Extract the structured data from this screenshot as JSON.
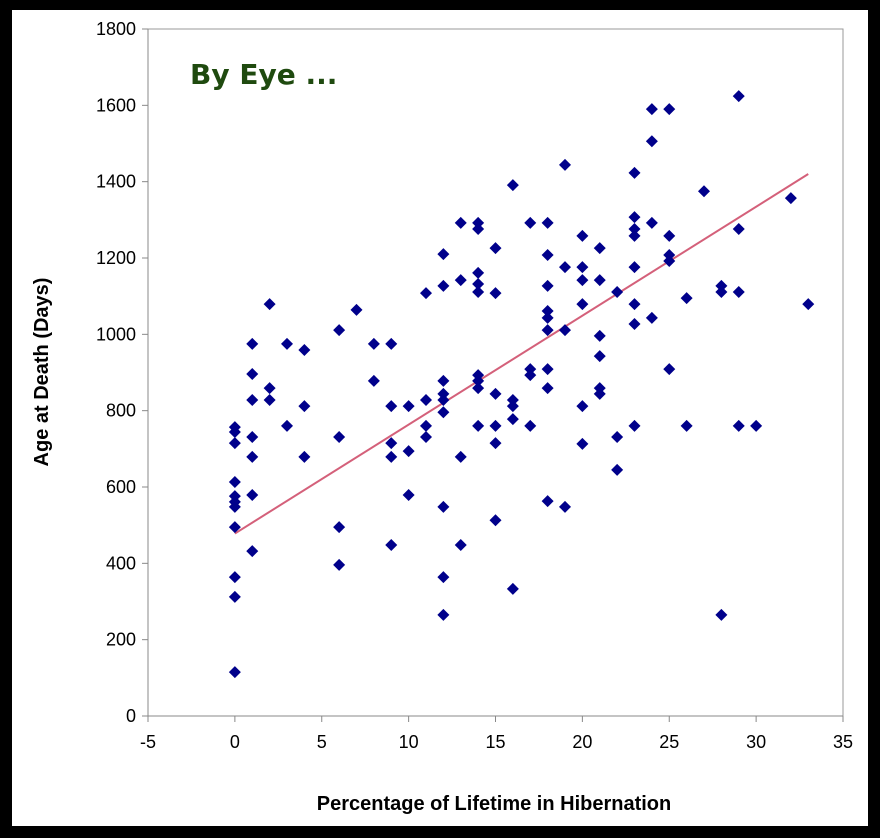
{
  "chart_data": {
    "type": "scatter",
    "annotation": "By Eye ...",
    "x_label": "Percentage of Lifetime in Hibernation",
    "y_label": "Age at Death (Days)",
    "x": [
      0,
      0,
      0,
      0,
      0,
      0,
      0,
      0,
      0,
      0,
      0,
      1,
      1,
      1,
      1,
      1,
      1,
      1,
      2,
      2,
      2,
      3,
      3,
      4,
      4,
      4,
      6,
      6,
      6,
      6,
      7,
      8,
      8,
      9,
      9,
      9,
      9,
      9,
      10,
      10,
      10,
      11,
      11,
      11,
      11,
      12,
      12,
      12,
      12,
      12,
      12,
      12,
      12,
      12,
      13,
      13,
      13,
      13,
      14,
      14,
      14,
      14,
      14,
      14,
      14,
      14,
      14,
      15,
      15,
      15,
      15,
      15,
      15,
      16,
      16,
      16,
      16,
      16,
      17,
      17,
      17,
      17,
      18,
      18,
      18,
      18,
      18,
      18,
      18,
      18,
      18,
      19,
      19,
      19,
      19,
      20,
      20,
      20,
      20,
      20,
      20,
      21,
      21,
      21,
      21,
      21,
      21,
      22,
      22,
      22,
      23,
      23,
      23,
      23,
      23,
      23,
      23,
      23,
      24,
      24,
      24,
      24,
      25,
      25,
      25,
      25,
      25,
      26,
      26,
      27,
      28,
      28,
      28,
      29,
      29,
      29,
      29,
      30,
      32,
      33
    ],
    "values": [
      757,
      744,
      715,
      613,
      576,
      561,
      548,
      495,
      364,
      312,
      115,
      975,
      896,
      828,
      731,
      679,
      579,
      432,
      1079,
      859,
      828,
      975,
      760,
      959,
      812,
      679,
      1011,
      731,
      495,
      396,
      1064,
      975,
      878,
      975,
      812,
      715,
      679,
      448,
      812,
      694,
      579,
      1108,
      828,
      760,
      731,
      1210,
      1127,
      878,
      844,
      828,
      796,
      548,
      364,
      265,
      1292,
      1142,
      679,
      448,
      1292,
      1276,
      1161,
      1132,
      1111,
      893,
      878,
      859,
      760,
      1226,
      1108,
      844,
      760,
      715,
      513,
      1391,
      828,
      812,
      778,
      333,
      1292,
      909,
      893,
      760,
      1292,
      1208,
      1127,
      1061,
      1043,
      1011,
      909,
      859,
      563,
      1444,
      1176,
      1011,
      548,
      1258,
      1176,
      1142,
      1079,
      812,
      713,
      1226,
      1142,
      996,
      943,
      859,
      844,
      1111,
      731,
      645,
      1423,
      1307,
      1276,
      1258,
      1176,
      1079,
      1027,
      760,
      1590,
      1506,
      1292,
      1043,
      1590,
      1258,
      1208,
      1192,
      909,
      1095,
      760,
      1375,
      1127,
      1111,
      265,
      1624,
      1276,
      1111,
      760,
      760,
      1357,
      1079
    ],
    "color": "#00008b",
    "trend_line": {
      "x": [
        0,
        33
      ],
      "values": [
        478,
        1420
      ],
      "color": "#d4607a"
    },
    "xlim": [
      -5,
      35
    ],
    "xticks": [
      -5,
      0,
      5,
      10,
      15,
      20,
      25,
      30,
      35
    ],
    "ylim": [
      0,
      1800
    ],
    "yticks": [
      0,
      200,
      400,
      600,
      800,
      1000,
      1200,
      1400,
      1600,
      1800
    ]
  }
}
